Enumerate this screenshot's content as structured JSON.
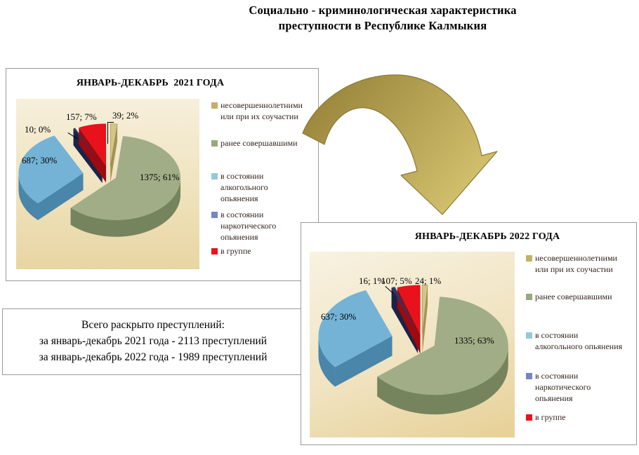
{
  "page": {
    "title": "Социально - криминологическая характеристика\nпреступности в Республике Калмыкия"
  },
  "summary": {
    "line1": "Всего раскрыто преступлений:",
    "line2": "за январь-декабрь 2021 года - 2113  преступлений",
    "line3": "за январь-декабрь 2022 года - 1989  преступлений"
  },
  "arrow": {
    "fill_start": "#97843a",
    "fill_end": "#d8c672",
    "stroke": "#8a7a35"
  },
  "chart_data": [
    {
      "type": "pie",
      "title": "ЯНВАРЬ-ДЕКАБРЬ  2021 ГОДА",
      "categories": [
        "несовершеннолетними или при их соучастии",
        "ранее совершавшими",
        "в состоянии алкогольного опьянения",
        "в состоянии наркотического опьянения",
        "в группе"
      ],
      "values": [
        39,
        1375,
        687,
        10,
        157
      ],
      "percents": [
        2,
        61,
        30,
        0,
        7
      ],
      "data_labels": [
        "39; 2%",
        "1375; 61%",
        "687; 30%",
        "10; 0%",
        "157; 7%"
      ],
      "colors": {
        "top": [
          "#d3c686",
          "#a1ad87",
          "#74b3d5",
          "#2b3765",
          "#e8111c"
        ],
        "side": [
          "#a3934e",
          "#76845e",
          "#4a85aa",
          "#1a2347",
          "#9e0a10"
        ],
        "swatch": [
          "#c3b164",
          "#9aa87f",
          "#93c9da",
          "#7286c8",
          "#e8131c"
        ]
      },
      "legend_items": [
        {
          "label": "несовершеннолетними\nили при их соучастии"
        },
        {
          "label": "ранее совершавшими"
        },
        {
          "label": "в состоянии\nалкогольного\nопьянения"
        },
        {
          "label": "в состоянии\nнаркотического\nопьянения"
        },
        {
          "label": "в группе"
        }
      ],
      "legend_position": "right"
    },
    {
      "type": "pie",
      "title": "ЯНВАРЬ-ДЕКАБРЬ 2022 ГОДА",
      "categories": [
        "несовершеннолетними или при их соучастии",
        "ранее совершавшими",
        "в состоянии алкогольного опьянения",
        "в состоянии наркотического опьянения",
        "в группе"
      ],
      "values": [
        24,
        1335,
        637,
        16,
        107
      ],
      "percents": [
        1,
        63,
        30,
        1,
        5
      ],
      "data_labels": [
        "24; 1%",
        "1335; 63%",
        "637; 30%",
        "16; 1%",
        "107; 5%"
      ],
      "colors": {
        "top": [
          "#d3c686",
          "#a1ad87",
          "#74b3d5",
          "#2b3765",
          "#e8111c"
        ],
        "side": [
          "#a3934e",
          "#76845e",
          "#4a85aa",
          "#1a2347",
          "#9e0a10"
        ],
        "swatch": [
          "#c3b164",
          "#9aa87f",
          "#93c9da",
          "#7286c8",
          "#e8131c"
        ]
      },
      "legend_items": [
        {
          "label": "несовершеннолетними\nили при их соучастии"
        },
        {
          "label": "ранее совершавшими"
        },
        {
          "label": "в состоянии\nалкогольного  опьянения"
        },
        {
          "label": "в состоянии\nнаркотического\nопьянения"
        },
        {
          "label": "в группе"
        }
      ],
      "legend_position": "right"
    }
  ]
}
